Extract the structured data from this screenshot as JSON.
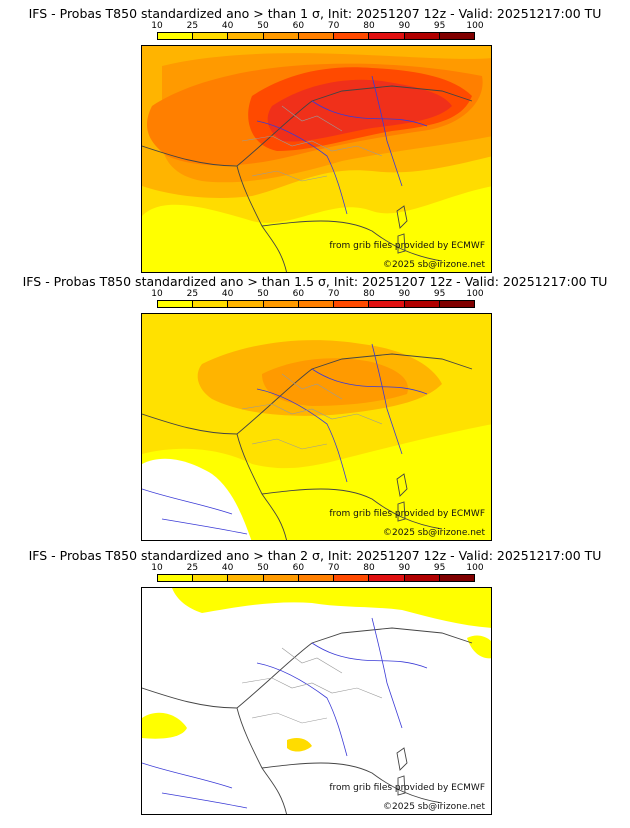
{
  "panels": [
    {
      "title": "IFS - Probas T850  standardized ano > than 1 σ, Init: 20251207 12z - Valid: 20251217:00 TU",
      "source": "from grib files provided by ECMWF",
      "copyright": "©2025 sb@irizone.net",
      "max_probability_pct": 70
    },
    {
      "title": "IFS - Probas T850  standardized ano > than 1.5 σ, Init: 20251207 12z - Valid: 20251217:00 TU",
      "source": "from grib files provided by ECMWF",
      "copyright": "©2025 sb@irizone.net",
      "max_probability_pct": 50
    },
    {
      "title": "IFS - Probas T850  standardized ano > than 2 σ, Init: 20251207 12z - Valid: 20251217:00 TU",
      "source": "from grib files provided by ECMWF",
      "copyright": "©2025 sb@irizone.net",
      "max_probability_pct": 25
    }
  ],
  "legend": {
    "labels": [
      "10",
      "25",
      "40",
      "50",
      "60",
      "70",
      "80",
      "90",
      "95",
      "100"
    ],
    "colors": [
      "#ffff00",
      "#ffdc00",
      "#ffb400",
      "#ff9a00",
      "#ff7f00",
      "#ff4a00",
      "#e01010",
      "#b00000",
      "#800000"
    ]
  },
  "map_colors": {
    "sea": "#ffffff",
    "borders": "#444444",
    "rivers": "#3a3ad6",
    "regions": "#9a9a9a"
  }
}
